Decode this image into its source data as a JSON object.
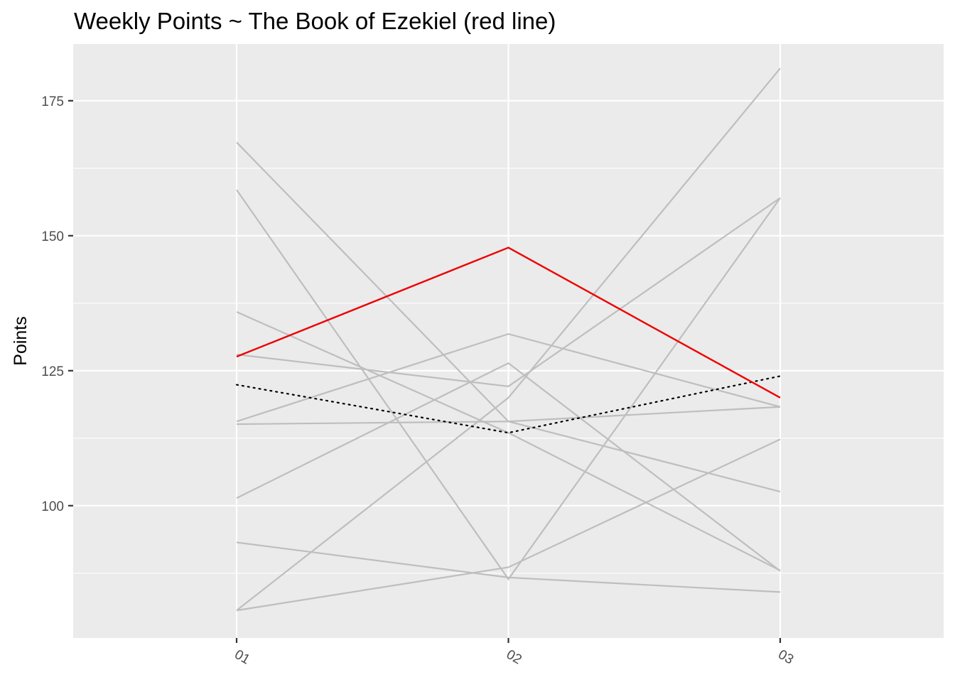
{
  "chart_data": {
    "type": "line",
    "title": "Weekly Points ~ The Book of Ezekiel (red line)",
    "xlabel": "",
    "ylabel": "Points",
    "categories": [
      "01",
      "02",
      "03"
    ],
    "ylim": [
      75.5,
      185.5
    ],
    "yticks": [
      100,
      125,
      150,
      175
    ],
    "grid": true,
    "legend": "none",
    "colors": {
      "panel": "#ebebeb",
      "grid": "#ffffff",
      "background_series": "#bebebe",
      "highlight": "#ee0000",
      "average": "#000000",
      "tick_text": "#4d4d4d"
    },
    "series": [
      {
        "role": "other",
        "values": [
          167.3,
          115.6,
          102.6
        ]
      },
      {
        "role": "other",
        "values": [
          158.5,
          86.4,
          157.0
        ]
      },
      {
        "role": "other",
        "values": [
          135.9,
          113.5,
          88.0
        ]
      },
      {
        "role": "other",
        "values": [
          128.0,
          122.1,
          157.0
        ]
      },
      {
        "role": "other",
        "values": [
          115.1,
          115.6,
          118.3
        ]
      },
      {
        "role": "other",
        "values": [
          115.6,
          131.8,
          118.3
        ]
      },
      {
        "role": "other",
        "values": [
          101.4,
          126.4,
          87.9
        ]
      },
      {
        "role": "other",
        "values": [
          93.2,
          86.7,
          84.0
        ]
      },
      {
        "role": "other",
        "values": [
          80.6,
          88.6,
          112.3
        ]
      },
      {
        "role": "other",
        "values": [
          80.6,
          120.0,
          181.0
        ]
      },
      {
        "role": "highlight",
        "values": [
          127.6,
          147.8,
          120.0
        ]
      },
      {
        "role": "average",
        "values": [
          122.4,
          113.5,
          124.0
        ]
      }
    ]
  }
}
